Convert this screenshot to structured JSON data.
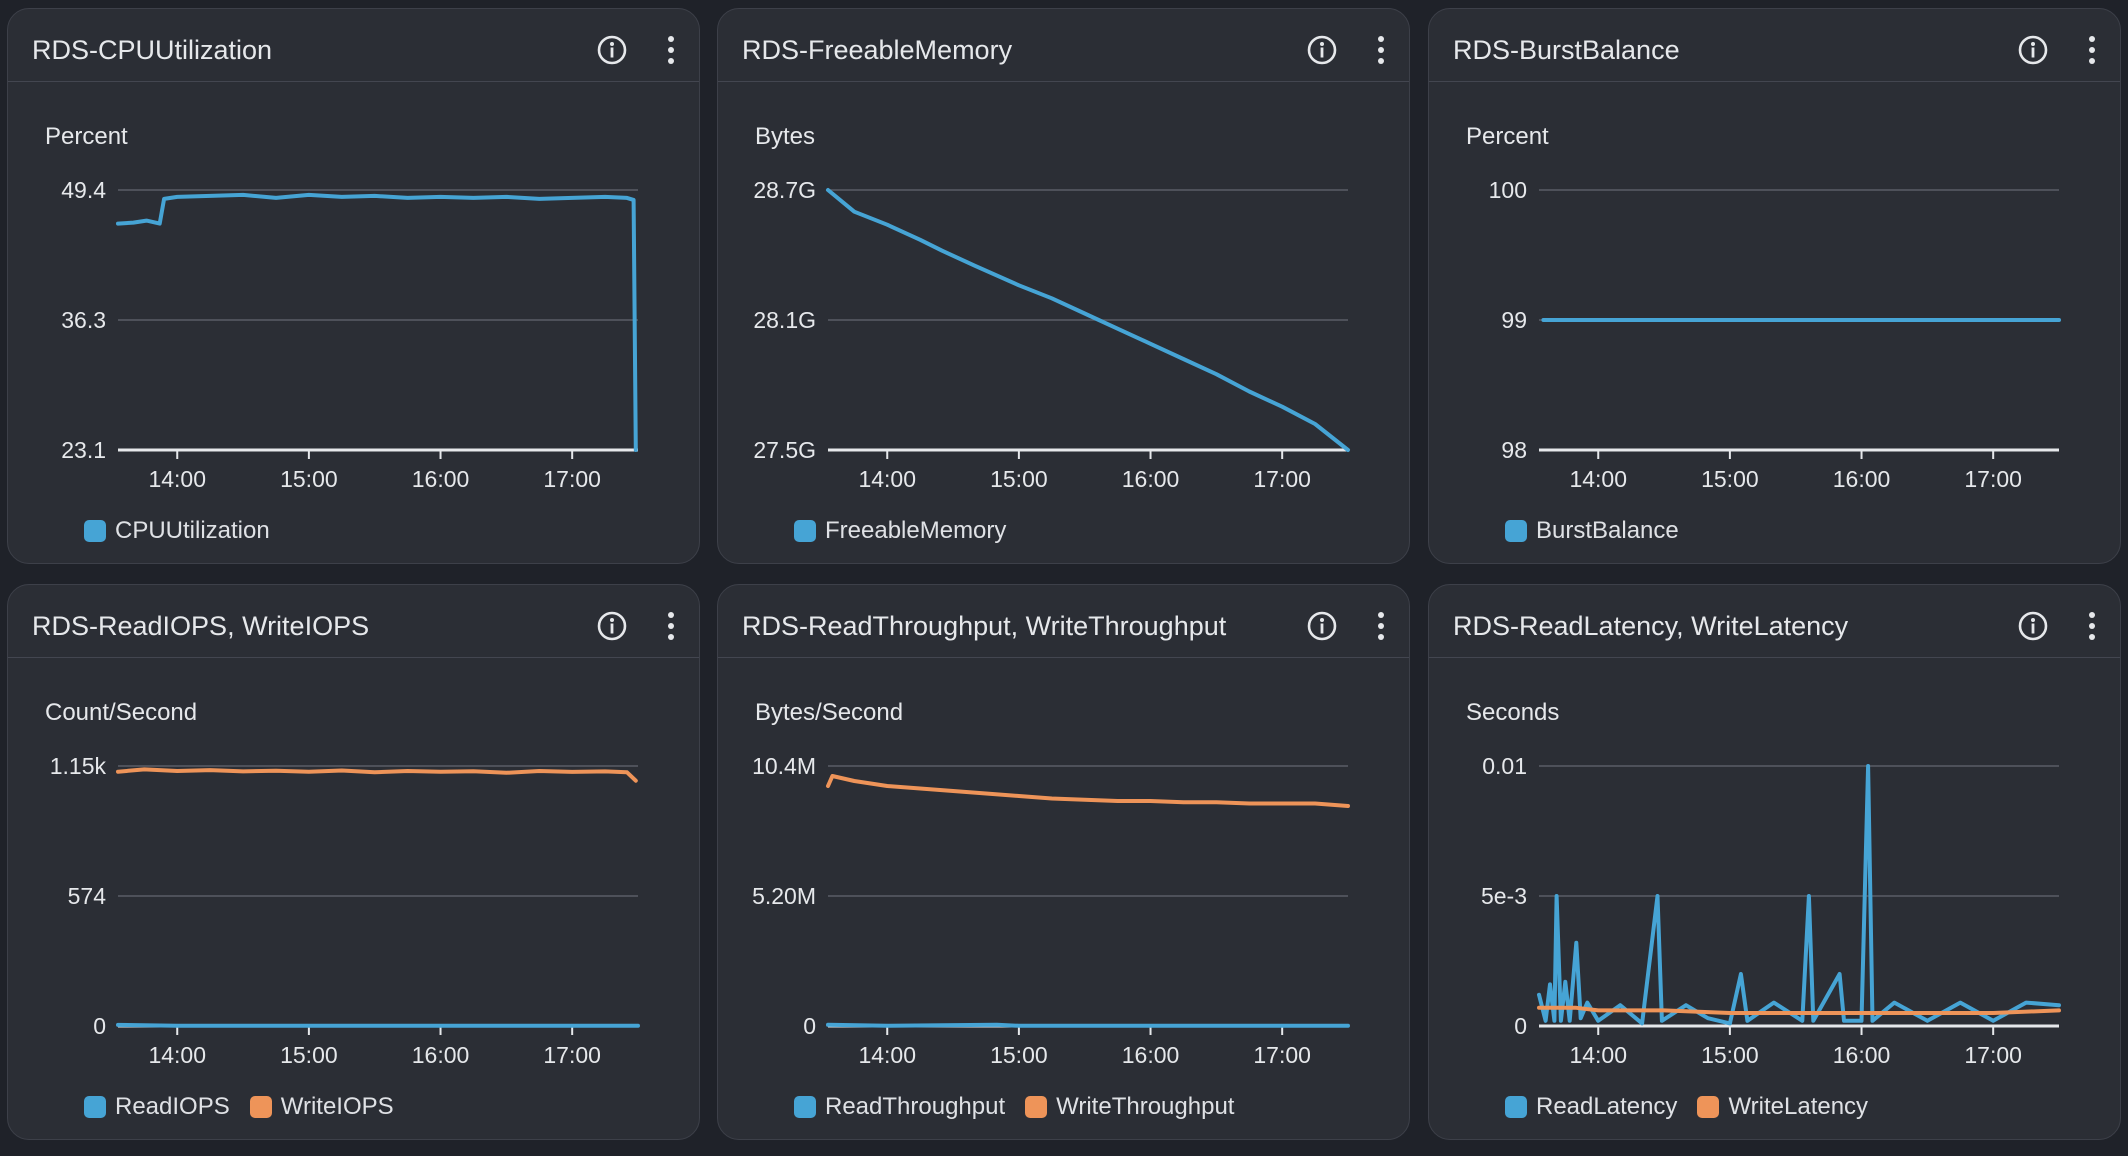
{
  "panels": [
    {
      "title": "RDS-CPUUtilization",
      "chart_data": {
        "type": "line",
        "ylabel": "Percent",
        "y_ticks": [
          "49.4",
          "36.3",
          "23.1"
        ],
        "ylim": [
          23.1,
          49.4
        ],
        "x_ticks": [
          "14:00",
          "15:00",
          "16:00",
          "17:00"
        ],
        "xlim": [
          "13:33",
          "17:30"
        ],
        "series": [
          {
            "name": "CPUUtilization",
            "color": "#46a4d5",
            "points": [
              [
                "13:33",
                46.0
              ],
              [
                "13:40",
                46.1
              ],
              [
                "13:46",
                46.3
              ],
              [
                "13:52",
                46.0
              ],
              [
                "13:54",
                48.5
              ],
              [
                "14:00",
                48.7
              ],
              [
                "14:15",
                48.8
              ],
              [
                "14:30",
                48.9
              ],
              [
                "14:45",
                48.6
              ],
              [
                "15:00",
                48.9
              ],
              [
                "15:15",
                48.7
              ],
              [
                "15:30",
                48.8
              ],
              [
                "15:45",
                48.6
              ],
              [
                "16:00",
                48.7
              ],
              [
                "16:15",
                48.6
              ],
              [
                "16:30",
                48.7
              ],
              [
                "16:45",
                48.5
              ],
              [
                "17:00",
                48.6
              ],
              [
                "17:15",
                48.7
              ],
              [
                "17:25",
                48.6
              ],
              [
                "17:28",
                48.4
              ],
              [
                "17:29",
                23.1
              ]
            ]
          }
        ]
      }
    },
    {
      "title": "RDS-FreeableMemory",
      "chart_data": {
        "type": "line",
        "ylabel": "Bytes",
        "y_ticks": [
          "28.7G",
          "28.1G",
          "27.5G"
        ],
        "ylim": [
          27.5,
          28.7
        ],
        "x_ticks": [
          "14:00",
          "15:00",
          "16:00",
          "17:00"
        ],
        "xlim": [
          "13:33",
          "17:30"
        ],
        "series": [
          {
            "name": "FreeableMemory",
            "color": "#46a4d5",
            "points": [
              [
                "13:33",
                28.7
              ],
              [
                "13:45",
                28.6
              ],
              [
                "14:00",
                28.54
              ],
              [
                "14:15",
                28.47
              ],
              [
                "14:25",
                28.42
              ],
              [
                "14:40",
                28.35
              ],
              [
                "15:00",
                28.26
              ],
              [
                "15:15",
                28.2
              ],
              [
                "15:30",
                28.13
              ],
              [
                "15:45",
                28.06
              ],
              [
                "16:00",
                27.99
              ],
              [
                "16:15",
                27.92
              ],
              [
                "16:30",
                27.85
              ],
              [
                "16:45",
                27.77
              ],
              [
                "17:00",
                27.7
              ],
              [
                "17:15",
                27.62
              ],
              [
                "17:30",
                27.5
              ]
            ]
          }
        ]
      }
    },
    {
      "title": "RDS-BurstBalance",
      "chart_data": {
        "type": "line",
        "ylabel": "Percent",
        "y_ticks": [
          "100",
          "99",
          "98"
        ],
        "ylim": [
          98,
          100
        ],
        "x_ticks": [
          "14:00",
          "15:00",
          "16:00",
          "17:00"
        ],
        "xlim": [
          "13:33",
          "17:30"
        ],
        "series": [
          {
            "name": "BurstBalance",
            "color": "#46a4d5",
            "points": [
              [
                "13:35",
                99
              ],
              [
                "17:30",
                99
              ]
            ]
          }
        ]
      }
    },
    {
      "title": "RDS-ReadIOPS, WriteIOPS",
      "chart_data": {
        "type": "line",
        "ylabel": "Count/Second",
        "y_ticks": [
          "1.15k",
          "574",
          "0"
        ],
        "ylim": [
          0,
          1150
        ],
        "x_ticks": [
          "14:00",
          "15:00",
          "16:00",
          "17:00"
        ],
        "xlim": [
          "13:33",
          "17:30"
        ],
        "series": [
          {
            "name": "ReadIOPS",
            "color": "#46a4d5",
            "points": [
              [
                "13:33",
                5
              ],
              [
                "14:00",
                1
              ],
              [
                "15:00",
                1
              ],
              [
                "16:00",
                1
              ],
              [
                "17:00",
                1
              ],
              [
                "17:30",
                1
              ]
            ]
          },
          {
            "name": "WriteIOPS",
            "color": "#ee9459",
            "points": [
              [
                "13:33",
                1125
              ],
              [
                "13:45",
                1135
              ],
              [
                "14:00",
                1128
              ],
              [
                "14:15",
                1132
              ],
              [
                "14:30",
                1126
              ],
              [
                "14:45",
                1129
              ],
              [
                "15:00",
                1125
              ],
              [
                "15:15",
                1130
              ],
              [
                "15:30",
                1122
              ],
              [
                "15:45",
                1128
              ],
              [
                "16:00",
                1125
              ],
              [
                "16:15",
                1127
              ],
              [
                "16:30",
                1120
              ],
              [
                "16:45",
                1128
              ],
              [
                "17:00",
                1124
              ],
              [
                "17:15",
                1126
              ],
              [
                "17:25",
                1122
              ],
              [
                "17:29",
                1085
              ]
            ]
          }
        ]
      }
    },
    {
      "title": "RDS-ReadThroughput, WriteThroughput",
      "chart_data": {
        "type": "line",
        "ylabel": "Bytes/Second",
        "y_ticks": [
          "10.4M",
          "5.20M",
          "0"
        ],
        "ylim": [
          0,
          10.4
        ],
        "x_ticks": [
          "14:00",
          "15:00",
          "16:00",
          "17:00"
        ],
        "xlim": [
          "13:33",
          "17:30"
        ],
        "series": [
          {
            "name": "ReadThroughput",
            "color": "#46a4d5",
            "points": [
              [
                "13:33",
                0.05
              ],
              [
                "14:00",
                0.01
              ],
              [
                "14:50",
                0.05
              ],
              [
                "15:00",
                0.01
              ],
              [
                "16:00",
                0.01
              ],
              [
                "17:00",
                0.01
              ],
              [
                "17:30",
                0.01
              ]
            ]
          },
          {
            "name": "WriteThroughput",
            "color": "#ee9459",
            "points": [
              [
                "13:33",
                9.6
              ],
              [
                "13:35",
                10.0
              ],
              [
                "13:45",
                9.8
              ],
              [
                "14:00",
                9.6
              ],
              [
                "14:15",
                9.5
              ],
              [
                "14:30",
                9.4
              ],
              [
                "14:45",
                9.3
              ],
              [
                "15:00",
                9.2
              ],
              [
                "15:15",
                9.1
              ],
              [
                "15:30",
                9.05
              ],
              [
                "15:45",
                9.0
              ],
              [
                "16:00",
                9.0
              ],
              [
                "16:15",
                8.95
              ],
              [
                "16:30",
                8.95
              ],
              [
                "16:45",
                8.9
              ],
              [
                "17:00",
                8.9
              ],
              [
                "17:15",
                8.9
              ],
              [
                "17:30",
                8.8
              ]
            ]
          }
        ]
      }
    },
    {
      "title": "RDS-ReadLatency, WriteLatency",
      "chart_data": {
        "type": "line",
        "ylabel": "Seconds",
        "y_ticks": [
          "0.01",
          "5e-3",
          "0"
        ],
        "ylim": [
          0,
          0.01
        ],
        "x_ticks": [
          "14:00",
          "15:00",
          "16:00",
          "17:00"
        ],
        "xlim": [
          "13:33",
          "17:30"
        ],
        "series": [
          {
            "name": "ReadLatency",
            "color": "#46a4d5",
            "points": [
              [
                "13:33",
                0.0012
              ],
              [
                "13:36",
                0.0002
              ],
              [
                "13:38",
                0.0016
              ],
              [
                "13:40",
                0.0002
              ],
              [
                "13:41",
                0.005
              ],
              [
                "13:43",
                0.0002
              ],
              [
                "13:45",
                0.0017
              ],
              [
                "13:47",
                0.0002
              ],
              [
                "13:50",
                0.0032
              ],
              [
                "13:52",
                0.0003
              ],
              [
                "13:55",
                0.0009
              ],
              [
                "14:00",
                0.0002
              ],
              [
                "14:10",
                0.0008
              ],
              [
                "14:20",
                0.0001
              ],
              [
                "14:27",
                0.005
              ],
              [
                "14:29",
                0.0002
              ],
              [
                "14:40",
                0.0008
              ],
              [
                "14:50",
                0.0003
              ],
              [
                "15:00",
                0.0001
              ],
              [
                "15:05",
                0.002
              ],
              [
                "15:08",
                0.0002
              ],
              [
                "15:20",
                0.0009
              ],
              [
                "15:33",
                0.0002
              ],
              [
                "15:36",
                0.005
              ],
              [
                "15:38",
                0.0002
              ],
              [
                "15:50",
                0.002
              ],
              [
                "15:52",
                0.0002
              ],
              [
                "16:00",
                0.0002
              ],
              [
                "16:03",
                0.01
              ],
              [
                "16:05",
                0.0002
              ],
              [
                "16:15",
                0.0009
              ],
              [
                "16:30",
                0.0002
              ],
              [
                "16:45",
                0.0009
              ],
              [
                "17:00",
                0.0002
              ],
              [
                "17:15",
                0.0009
              ],
              [
                "17:30",
                0.0008
              ]
            ]
          },
          {
            "name": "WriteLatency",
            "color": "#ee9459",
            "points": [
              [
                "13:33",
                0.0007
              ],
              [
                "13:50",
                0.0007
              ],
              [
                "14:00",
                0.0006
              ],
              [
                "14:30",
                0.0006
              ],
              [
                "15:00",
                0.0005
              ],
              [
                "15:30",
                0.0005
              ],
              [
                "16:00",
                0.0005
              ],
              [
                "16:30",
                0.0005
              ],
              [
                "17:00",
                0.0005
              ],
              [
                "17:30",
                0.0006
              ]
            ]
          }
        ]
      }
    }
  ]
}
